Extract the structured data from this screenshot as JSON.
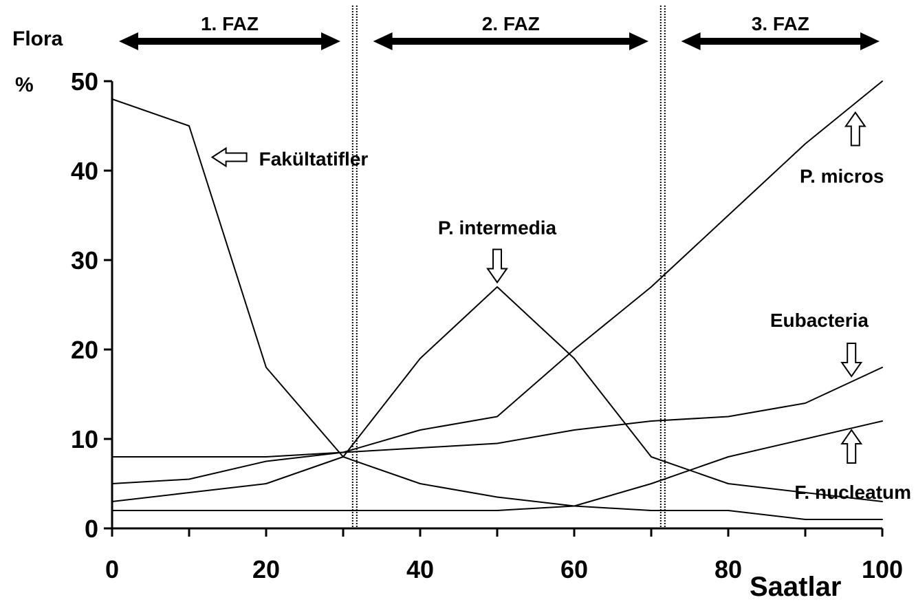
{
  "chart_data": {
    "type": "line",
    "title": "",
    "xlabel": "Saatlar",
    "ylabel_lines": [
      "Flora",
      "%"
    ],
    "xlim": [
      0,
      100
    ],
    "ylim": [
      0,
      50
    ],
    "x_ticks": [
      0,
      20,
      40,
      60,
      80,
      100
    ],
    "y_ticks": [
      0,
      10,
      20,
      30,
      40,
      50
    ],
    "grid": false,
    "line_color": "#000000",
    "x": [
      0,
      10,
      20,
      30,
      40,
      50,
      60,
      70,
      80,
      90,
      100
    ],
    "series": [
      {
        "values": [
          48,
          45,
          18,
          8,
          5,
          3.5,
          2.5,
          2,
          2,
          1,
          1
        ]
      },
      {
        "values": [
          3,
          4,
          5,
          8,
          19,
          27,
          19,
          8,
          5,
          4,
          3
        ]
      },
      {
        "values": [
          5,
          5.5,
          7.5,
          8.5,
          11,
          12.5,
          20,
          27,
          35,
          43,
          50
        ]
      },
      {
        "values": [
          8,
          8,
          8,
          8.5,
          9,
          9.5,
          11,
          12,
          12.5,
          14,
          18
        ]
      },
      {
        "values": [
          2,
          2,
          2,
          2,
          2,
          2,
          2.5,
          5,
          8,
          10,
          12
        ]
      }
    ],
    "phases": [
      {
        "label": "1. FAZ",
        "start": 0,
        "end": 30
      },
      {
        "label": "2. FAZ",
        "start": 33,
        "end": 70
      },
      {
        "label": "3. FAZ",
        "start": 73,
        "end": 100
      }
    ],
    "phase_dividers": [
      31.5,
      71.5
    ],
    "annotations": [
      {
        "text": "Fakültatifler",
        "x": 13,
        "y": 41.5,
        "arrow": "left"
      },
      {
        "text": "P. intermedia",
        "x": 50,
        "y": 27.5,
        "arrow": "down"
      },
      {
        "text": "P. micros",
        "x": 96.5,
        "y": 46.5,
        "arrow": "up"
      },
      {
        "text": "Eubacteria",
        "x": 96,
        "y": 17,
        "arrow": "down"
      },
      {
        "text": "F. nucleatum",
        "x": 96,
        "y": 11,
        "arrow": "up"
      }
    ]
  }
}
